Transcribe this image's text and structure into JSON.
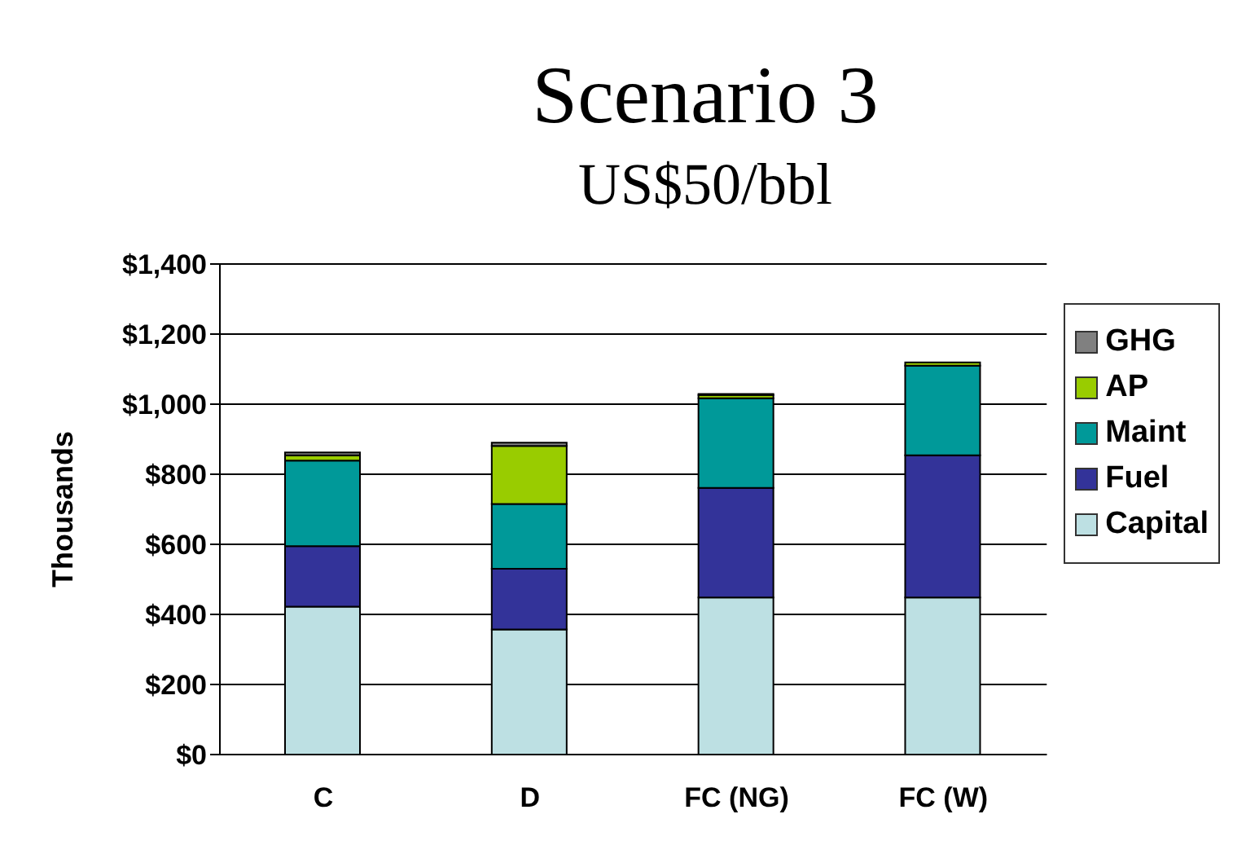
{
  "chart_data": {
    "type": "bar",
    "title": "Scenario 3",
    "subtitle": "US$50/bbl",
    "ylabel": "Thousands",
    "categories": [
      "C",
      "D",
      "FC (NG)",
      "FC (W)"
    ],
    "stacked": true,
    "series": [
      {
        "name": "Capital",
        "color": "#bde0e3",
        "values": [
          422,
          357,
          448,
          448
        ]
      },
      {
        "name": "Fuel",
        "color": "#333399",
        "values": [
          173,
          173,
          313,
          406
        ]
      },
      {
        "name": "Maint",
        "color": "#009999",
        "values": [
          244,
          185,
          256,
          256
        ]
      },
      {
        "name": "AP",
        "color": "#99cc00",
        "values": [
          15,
          166,
          9,
          9
        ]
      },
      {
        "name": "GHG",
        "color": "#808080",
        "values": [
          8,
          9,
          3,
          null
        ]
      }
    ],
    "ylim": [
      0,
      1400
    ],
    "yticks": [
      {
        "value": 0,
        "label": "$0"
      },
      {
        "value": 200,
        "label": "$200"
      },
      {
        "value": 400,
        "label": "$400"
      },
      {
        "value": 600,
        "label": "$600"
      },
      {
        "value": 800,
        "label": "$800"
      },
      {
        "value": 1000,
        "label": "$1,000"
      },
      {
        "value": 1200,
        "label": "$1,200"
      },
      {
        "value": 1400,
        "label": "$1,400"
      }
    ],
    "grid": "y",
    "legend": "right"
  }
}
